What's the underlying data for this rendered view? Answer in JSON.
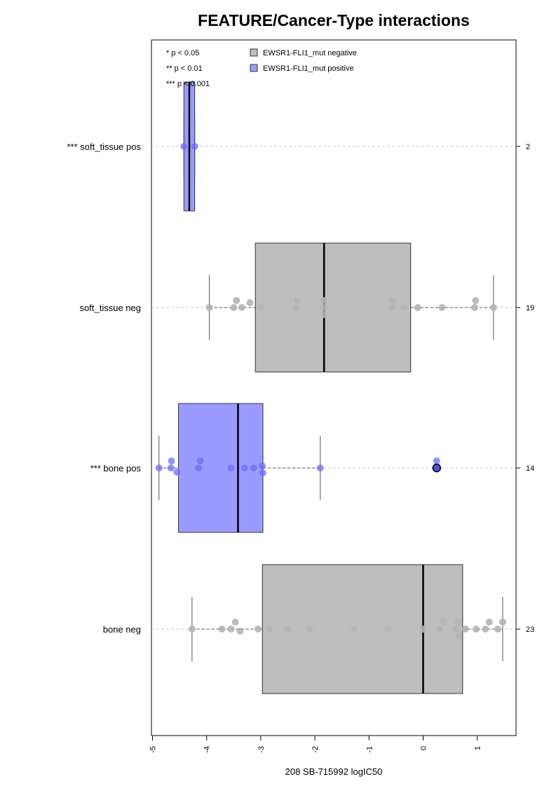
{
  "chart_data": {
    "type": "boxplot",
    "title": "FEATURE/Cancer-Type interactions",
    "xlabel": "208 SB-715992 logIC50",
    "xlim": [
      -5.1,
      1.7
    ],
    "xticks": [
      -5,
      -4,
      -3,
      -2,
      -1,
      0,
      1
    ],
    "xtick_labels": [
      "-5",
      "-4",
      "-3",
      "-2",
      "-1",
      "0",
      "1"
    ],
    "significance_legend": [
      "* p < 0.05",
      "** p < 0.01",
      "*** p < 0.001"
    ],
    "legend": [
      {
        "label": "EWSR1-FLI1_mut negative",
        "color": "#bebebe"
      },
      {
        "label": "EWSR1-FLI1_mut positive",
        "color": "#9b9bff"
      }
    ],
    "colors": {
      "negative_box": "#bebebe",
      "positive_box": "#9b9bff",
      "negative_point": "#b4b4b4",
      "positive_point": "#6e6ef5",
      "highlight_point": "#5050e0"
    },
    "groups": [
      {
        "label": "bone neg",
        "count": "23",
        "status": "negative",
        "q1": -2.97,
        "median": 0.0,
        "q3": 0.73,
        "whisker_low": -4.27,
        "whisker_high": 1.47,
        "points": [
          [
            -4.27,
            0
          ],
          [
            -3.72,
            0
          ],
          [
            -3.55,
            0
          ],
          [
            -3.47,
            0.1
          ],
          [
            -3.38,
            -0.03
          ],
          [
            -3.05,
            0
          ],
          [
            -2.85,
            0
          ],
          [
            -2.52,
            0
          ],
          [
            -2.1,
            0
          ],
          [
            -1.28,
            0
          ],
          [
            -0.65,
            0
          ],
          [
            0.0,
            0
          ],
          [
            0.3,
            0
          ],
          [
            0.38,
            0.1
          ],
          [
            0.6,
            0
          ],
          [
            0.65,
            0.1
          ],
          [
            0.66,
            -0.1
          ],
          [
            0.78,
            0
          ],
          [
            0.98,
            0
          ],
          [
            1.15,
            0
          ],
          [
            1.22,
            0.1
          ],
          [
            1.38,
            0
          ],
          [
            1.47,
            0.1
          ]
        ]
      },
      {
        "label": "*** bone pos",
        "count": "14",
        "status": "positive",
        "q1": -4.52,
        "median": -3.42,
        "q3": -2.96,
        "whisker_low": -4.88,
        "whisker_high": -1.9,
        "points": [
          [
            -4.88,
            0
          ],
          [
            -4.65,
            0.1
          ],
          [
            -4.66,
            0
          ],
          [
            -4.55,
            -0.06
          ],
          [
            -4.12,
            0.1
          ],
          [
            -4.15,
            0
          ],
          [
            -3.55,
            0
          ],
          [
            -3.3,
            0
          ],
          [
            -3.13,
            0
          ],
          [
            -2.97,
            0.03
          ],
          [
            -2.96,
            -0.07
          ],
          [
            -1.9,
            0
          ],
          [
            0.25,
            0.1
          ],
          [
            0.25,
            0
          ]
        ],
        "highlight": [
          0.25,
          0
        ]
      },
      {
        "label": "soft_tissue neg",
        "count": "19",
        "status": "negative",
        "q1": -3.1,
        "median": -1.83,
        "q3": -0.23,
        "whisker_low": -3.95,
        "whisker_high": 1.3,
        "points": [
          [
            -3.95,
            0
          ],
          [
            -3.45,
            0.1
          ],
          [
            -3.5,
            0
          ],
          [
            -3.35,
            0
          ],
          [
            -3.2,
            0.07
          ],
          [
            -3.0,
            0
          ],
          [
            -2.32,
            0.1
          ],
          [
            -2.35,
            0
          ],
          [
            -1.84,
            0.1
          ],
          [
            -1.84,
            0
          ],
          [
            -1.83,
            -0.1
          ],
          [
            -0.55,
            0.1
          ],
          [
            -0.57,
            0
          ],
          [
            -0.35,
            0
          ],
          [
            -0.1,
            0
          ],
          [
            0.35,
            0
          ],
          [
            0.97,
            0.1
          ],
          [
            0.95,
            0
          ],
          [
            1.3,
            0
          ]
        ]
      },
      {
        "label": "*** soft_tissue pos",
        "count": "2",
        "status": "positive",
        "q1": -4.42,
        "median": -4.32,
        "q3": -4.22,
        "whisker_low": -4.42,
        "whisker_high": -4.22,
        "points": [
          [
            -4.42,
            0
          ],
          [
            -4.22,
            0
          ]
        ]
      }
    ]
  }
}
